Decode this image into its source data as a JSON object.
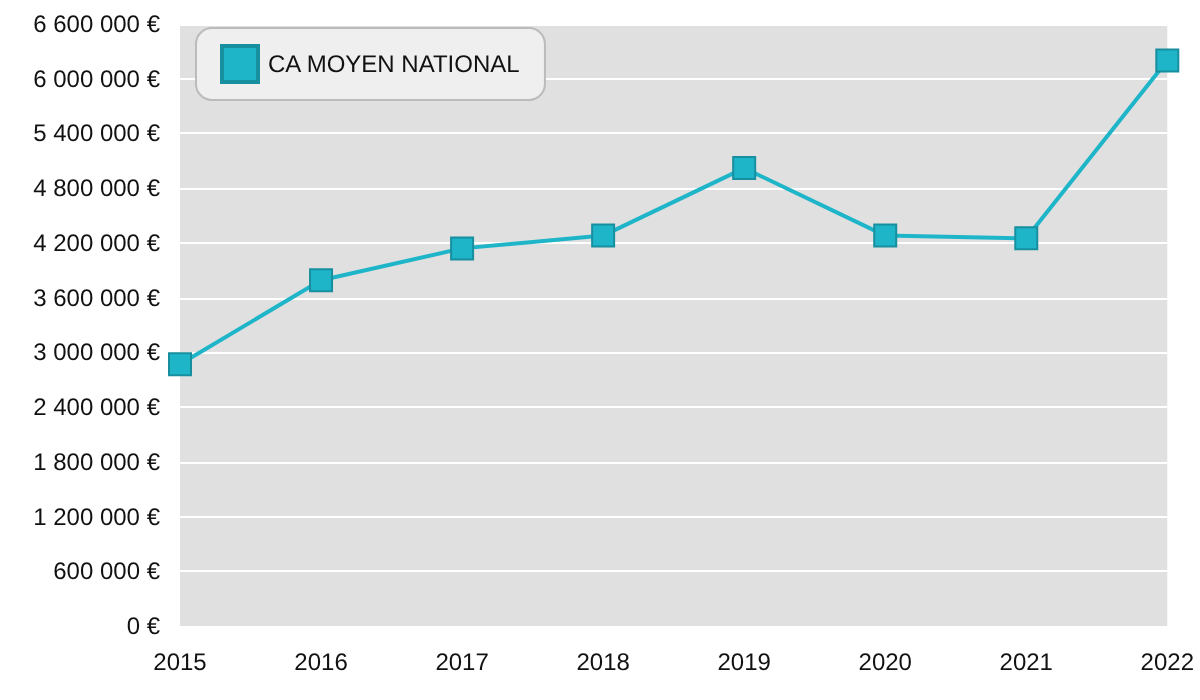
{
  "chart_data": {
    "type": "line",
    "categories": [
      "2015",
      "2016",
      "2017",
      "2018",
      "2019",
      "2020",
      "2021",
      "2022"
    ],
    "series": [
      {
        "name": "CA MOYEN NATIONAL",
        "color": "#1fb5c9",
        "values": [
          2870000,
          3790000,
          4140000,
          4280000,
          5020000,
          4280000,
          4250000,
          6200000
        ]
      }
    ],
    "ylim": [
      0,
      6600000
    ],
    "yticks": [
      {
        "value": 0,
        "label": "0 €"
      },
      {
        "value": 600000,
        "label": "600 000 €"
      },
      {
        "value": 1200000,
        "label": "1 200 000 €"
      },
      {
        "value": 1800000,
        "label": "1 800 000 €"
      },
      {
        "value": 2400000,
        "label": "2 400 000 €"
      },
      {
        "value": 3000000,
        "label": "3 000 000 €"
      },
      {
        "value": 3600000,
        "label": "3 600 000 €"
      },
      {
        "value": 4200000,
        "label": "4 200 000 €"
      },
      {
        "value": 4800000,
        "label": "4 800 000 €"
      },
      {
        "value": 5400000,
        "label": "5 400 000 €"
      },
      {
        "value": 6000000,
        "label": "6 000 000 €"
      },
      {
        "value": 6600000,
        "label": "6 600 000 €"
      }
    ],
    "grid": "y",
    "legend": "top left",
    "marker": "square",
    "line_style": "solid"
  }
}
